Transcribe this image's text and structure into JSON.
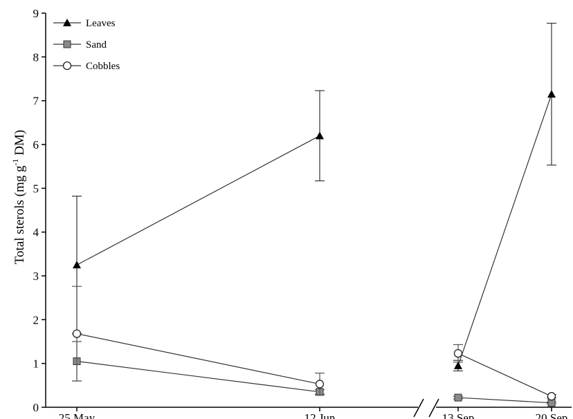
{
  "chart_data": {
    "type": "line",
    "ylabel_main": "Total sterols (mg g",
    "ylabel_sup": "-1",
    "ylabel_tail": " DM)",
    "xlabel": "",
    "ylim": [
      0,
      9
    ],
    "yticks": [
      "0",
      "1",
      "2",
      "3",
      "4",
      "5",
      "6",
      "7",
      "8",
      "9"
    ],
    "axis_break": true,
    "categories": [
      "25 May",
      "12 Jun",
      "13 Sep",
      "20 Sep"
    ],
    "legend_position": "top-left",
    "series": [
      {
        "name": "Leaves",
        "marker": "triangle",
        "values": [
          3.25,
          6.2,
          0.95,
          7.15
        ],
        "errors": [
          1.57,
          1.03,
          0.12,
          1.62
        ]
      },
      {
        "name": "Sand",
        "marker": "square",
        "values": [
          1.05,
          0.35,
          0.22,
          0.1
        ],
        "errors": [
          0.45,
          0.05,
          0.03,
          0.02
        ]
      },
      {
        "name": "Cobbles",
        "marker": "circle",
        "values": [
          1.68,
          0.53,
          1.23,
          0.25
        ],
        "errors": [
          1.08,
          0.25,
          0.2,
          0.04
        ]
      }
    ]
  }
}
